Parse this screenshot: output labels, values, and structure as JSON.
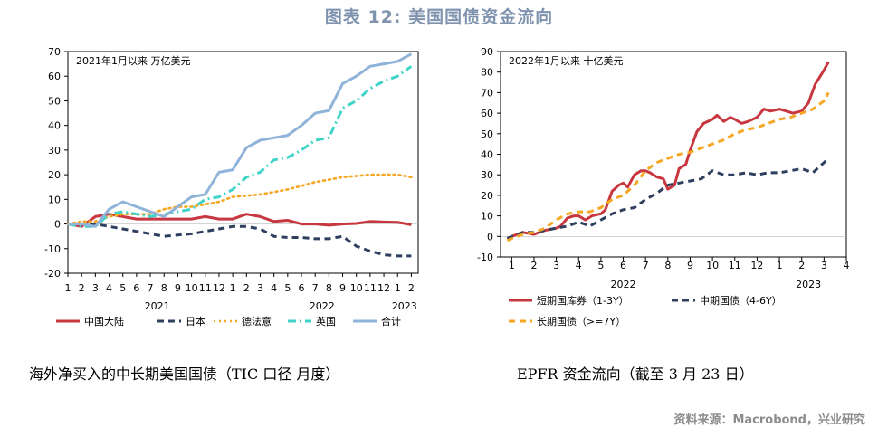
{
  "title": "图表 12: 美国国债资金流向",
  "source": "资料来源：Macrobond，兴业研究",
  "colors": {
    "title": "#7f93ae",
    "red": "#c8373f",
    "navy": "#2f3f5e",
    "orange": "#f5a623",
    "teal": "#40d4c8",
    "blue": "#8fb3d9"
  },
  "chart_data": [
    {
      "type": "line",
      "note": "2021年1月以来  万亿美元",
      "caption": "海外净买入的中长期美国国债（TIC 口径  月度）",
      "ylim": [
        -20,
        70
      ],
      "yticks": [
        "70",
        "60",
        "50",
        "40",
        "30",
        "20",
        "10",
        "0",
        "-10",
        "-20"
      ],
      "month_ticks": [
        "1",
        "2",
        "3",
        "4",
        "5",
        "6",
        "7",
        "8",
        "9",
        "10",
        "11",
        "12",
        "1",
        "2",
        "3",
        "4",
        "5",
        "6",
        "7",
        "8",
        "9",
        "10",
        "11",
        "12",
        "1",
        "2"
      ],
      "year_labels": [
        {
          "label": "2021",
          "at": 6.5
        },
        {
          "label": "2022",
          "at": 18.5
        },
        {
          "label": "2023",
          "at": 24.5
        }
      ],
      "series": [
        {
          "name": "中国大陆",
          "color": "#c8373f",
          "dash": "solid",
          "values": [
            0,
            -1,
            3,
            4,
            3,
            2,
            2,
            2,
            2,
            2,
            3,
            2,
            2,
            4,
            3,
            1,
            1.5,
            0,
            0,
            -0.5,
            0,
            0.2,
            1,
            0.8,
            0.7,
            -0.3
          ]
        },
        {
          "name": "日本",
          "color": "#2f3f5e",
          "dash": "dash",
          "values": [
            0,
            0,
            0,
            -1,
            -2,
            -3,
            -4,
            -5,
            -4.5,
            -4,
            -3,
            -2,
            -1,
            -1,
            -2,
            -5,
            -5.5,
            -5.5,
            -6,
            -6,
            -5,
            -9,
            -11,
            -12.5,
            -13,
            -13
          ]
        },
        {
          "name": "德法意",
          "color": "#f5a623",
          "dash": "dot",
          "values": [
            0,
            1,
            1,
            3,
            4,
            4,
            4,
            6,
            7,
            7,
            8,
            9,
            11,
            11.5,
            12,
            13,
            14,
            15.5,
            17,
            18,
            19,
            19.5,
            20,
            20,
            20,
            19
          ]
        },
        {
          "name": "英国",
          "color": "#40d4c8",
          "dash": "dashdot",
          "values": [
            0,
            -1,
            -1,
            4,
            5,
            4,
            3,
            4,
            5,
            6,
            10,
            11,
            14,
            19,
            21,
            26,
            27,
            30,
            34,
            35,
            47,
            50,
            55,
            58,
            60,
            64
          ]
        },
        {
          "name": "合计",
          "color": "#8fb3d9",
          "dash": "solid",
          "values": [
            0,
            0,
            -1,
            6,
            9,
            7,
            5,
            3,
            7,
            11,
            12,
            21,
            22,
            31,
            34,
            35,
            36,
            40,
            45,
            46,
            57,
            60,
            64,
            65,
            66,
            69
          ]
        }
      ]
    },
    {
      "type": "line",
      "note": "2022年1月以来  十亿美元",
      "caption": "EPFR 资金流向（截至 3 月 23 日）",
      "ylim": [
        -10,
        90
      ],
      "yticks": [
        "90",
        "80",
        "70",
        "60",
        "50",
        "40",
        "30",
        "20",
        "10",
        "0",
        "-10"
      ],
      "month_ticks": [
        "1",
        "2",
        "3",
        "4",
        "5",
        "6",
        "7",
        "8",
        "9",
        "10",
        "11",
        "12",
        "1",
        "2",
        "3",
        "4"
      ],
      "year_labels": [
        {
          "label": "2022",
          "at": 6
        },
        {
          "label": "2023",
          "at": 14.3
        }
      ],
      "series": [
        {
          "name": "短期国库券（1-3Y）",
          "color": "#c8373f",
          "dash": "solid",
          "x": [
            0.8,
            1,
            1.5,
            2,
            2.5,
            3,
            3.2,
            3.5,
            3.8,
            4,
            4.3,
            4.6,
            5,
            5.2,
            5.5,
            5.8,
            6,
            6.2,
            6.5,
            6.8,
            7,
            7.2,
            7.5,
            7.8,
            8,
            8.3,
            8.5,
            8.8,
            9,
            9.3,
            9.6,
            10,
            10.2,
            10.5,
            10.8,
            11,
            11.3,
            11.6,
            12,
            12.3,
            12.6,
            13,
            13.3,
            13.6,
            14,
            14.3,
            14.6,
            15,
            15.2
          ],
          "values": [
            -1,
            0,
            2,
            1,
            3,
            4,
            5,
            9,
            10,
            10,
            8,
            10,
            11,
            13,
            22,
            25,
            26,
            24,
            30,
            32,
            32,
            31,
            29,
            28,
            23,
            25,
            33,
            35,
            42,
            51,
            55,
            57,
            59,
            56,
            58,
            57,
            55,
            56,
            58,
            62,
            61,
            62,
            61,
            60,
            61,
            65,
            74,
            81,
            85
          ]
        },
        {
          "name": "中期国债（4-6Y）",
          "color": "#2f3f5e",
          "dash": "dash",
          "x": [
            0.8,
            1,
            1.5,
            2,
            2.5,
            3,
            3.5,
            4,
            4.5,
            5,
            5.5,
            6,
            6.5,
            7,
            7.5,
            8,
            8.5,
            9,
            9.5,
            10,
            10.5,
            11,
            11.5,
            12,
            12.5,
            13,
            13.5,
            14,
            14.5,
            15,
            15.2
          ],
          "values": [
            -1,
            0,
            2,
            2,
            3,
            4,
            5,
            7,
            5,
            8,
            11,
            13,
            14,
            18,
            21,
            25,
            26,
            27,
            28,
            32,
            30,
            30,
            31,
            30,
            31,
            31,
            32,
            33,
            31,
            36,
            38
          ]
        },
        {
          "name": "长期国债（>=7Y）",
          "color": "#f5a623",
          "dash": "dash",
          "x": [
            0.8,
            1,
            1.5,
            2,
            2.5,
            3,
            3.5,
            4,
            4.5,
            5,
            5.5,
            6,
            6.5,
            7,
            7.5,
            8,
            8.5,
            9,
            9.5,
            10,
            10.5,
            11,
            11.5,
            12,
            12.5,
            13,
            13.5,
            14,
            14.5,
            15,
            15.2
          ],
          "values": [
            -2,
            -1,
            1,
            2,
            4,
            8,
            11,
            12,
            12,
            14,
            18,
            20,
            25,
            32,
            36,
            38,
            40,
            41,
            43,
            45,
            47,
            50,
            52,
            53,
            55,
            57,
            58,
            60,
            62,
            66,
            70
          ]
        }
      ]
    }
  ]
}
